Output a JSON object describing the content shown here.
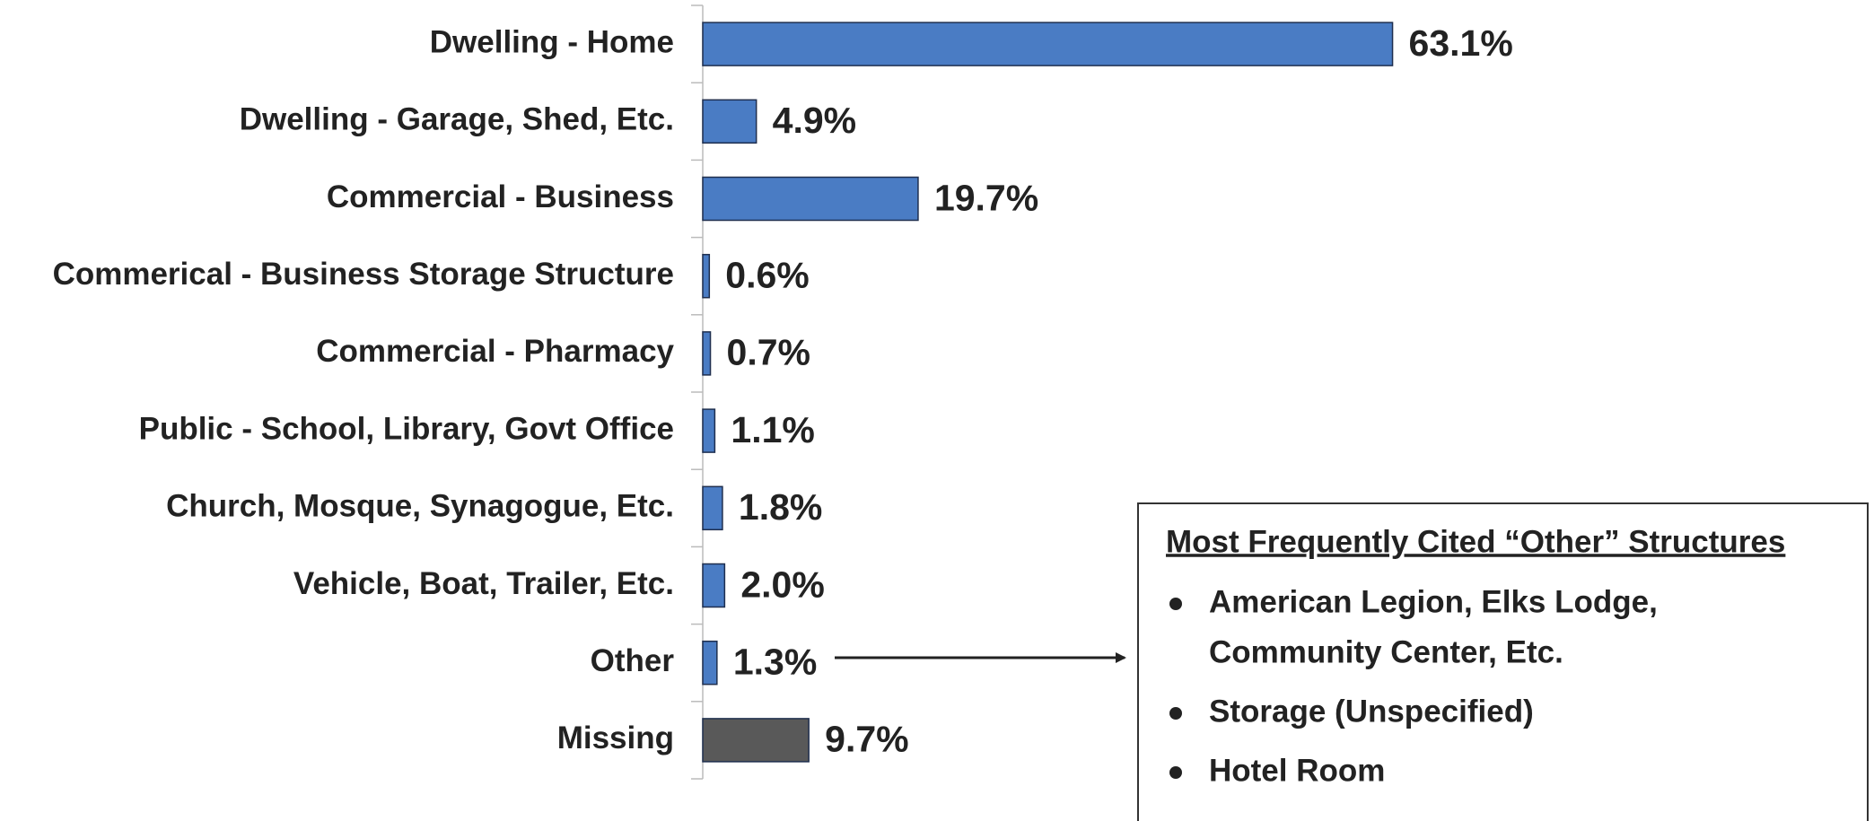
{
  "chart_data": {
    "type": "bar",
    "orientation": "horizontal",
    "categories": [
      "Dwelling - Home",
      "Dwelling - Garage, Shed, Etc.",
      "Commercial - Business",
      "Commerical - Business Storage Structure",
      "Commercial - Pharmacy",
      "Public - School, Library, Govt Office",
      "Church, Mosque, Synagogue, Etc.",
      "Vehicle, Boat, Trailer, Etc.",
      "Other",
      "Missing"
    ],
    "values": [
      63.1,
      4.9,
      19.7,
      0.6,
      0.7,
      1.1,
      1.8,
      2.0,
      1.3,
      9.7
    ],
    "value_labels": [
      "63.1%",
      "4.9%",
      "19.7%",
      "0.6%",
      "0.7%",
      "1.1%",
      "1.8%",
      "2.0%",
      "1.3%",
      "9.7%"
    ],
    "colors": [
      "#4a7cc4",
      "#4a7cc4",
      "#4a7cc4",
      "#4a7cc4",
      "#4a7cc4",
      "#4a7cc4",
      "#4a7cc4",
      "#4a7cc4",
      "#4a7cc4",
      "#595959"
    ],
    "xlim": [
      0,
      100
    ],
    "annotation": {
      "title": "Most Frequently Cited “Other” Structures",
      "items": [
        "American Legion, Elks Lodge,",
        "Community Center, Etc.",
        "Storage (Unspecified)",
        "Hotel Room"
      ]
    }
  }
}
